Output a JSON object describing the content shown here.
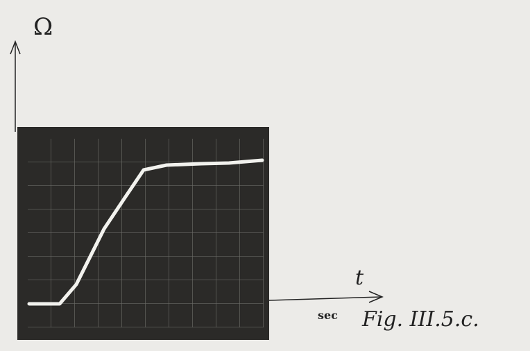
{
  "figure": {
    "y_axis_label": "Ω",
    "x_axis_label": "t",
    "x_unit": "sec",
    "caption": "Fig. III.5.c."
  }
}
